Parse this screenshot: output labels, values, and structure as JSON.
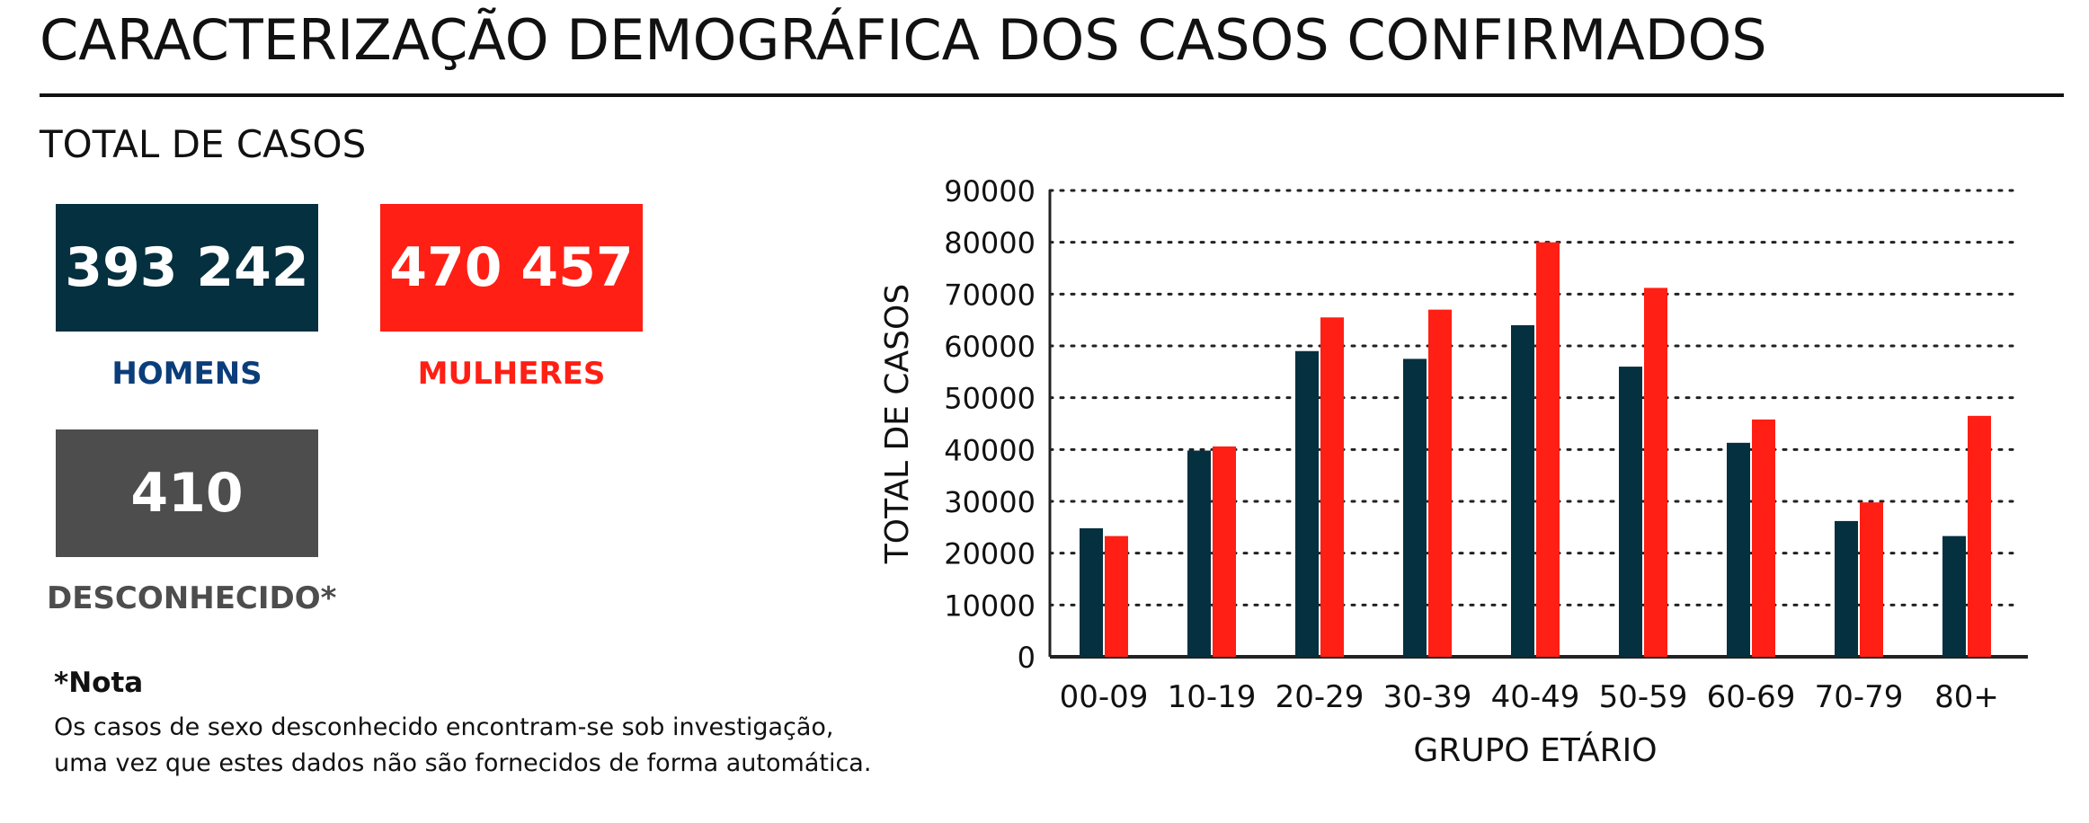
{
  "header": {
    "title": "CARACTERIZAÇÃO DEMOGRÁFICA DOS CASOS CONFIRMADOS"
  },
  "totals": {
    "heading": "TOTAL DE CASOS",
    "men": {
      "value": "393 242",
      "label": "HOMENS",
      "color": "#04303f"
    },
    "women": {
      "value": "470 457",
      "label": "MULHERES",
      "color": "#ff1f14"
    },
    "unknown": {
      "value": "410",
      "label": "DESCONHECIDO*",
      "color": "#4d4d4d"
    },
    "men_label_color": "#0b3d7a"
  },
  "note": {
    "title": "*Nota",
    "lines": [
      "Os casos de sexo desconhecido encontram-se sob investigação,",
      "uma vez que estes dados não são fornecidos de forma automática."
    ]
  },
  "chart_data": {
    "type": "bar",
    "title": "",
    "xlabel": "GRUPO ETÁRIO",
    "ylabel": "TOTAL DE CASOS",
    "categories": [
      "00-09",
      "10-19",
      "20-29",
      "30-39",
      "40-49",
      "50-59",
      "60-69",
      "70-79",
      "80+"
    ],
    "series": [
      {
        "color": "#04303f",
        "values": [
          24800,
          39800,
          59000,
          57500,
          64000,
          56000,
          41300,
          26200,
          23300
        ]
      },
      {
        "color": "#ff1f14",
        "values": [
          23300,
          40600,
          65500,
          67000,
          80000,
          71200,
          45800,
          29800,
          46500
        ]
      }
    ],
    "ylim": [
      0,
      90000
    ],
    "yticks": [
      0,
      10000,
      20000,
      30000,
      40000,
      50000,
      60000,
      70000,
      80000,
      90000
    ],
    "ytick_labels": [
      "0",
      "10000",
      "20000",
      "30000",
      "40000",
      "50000",
      "60000",
      "70000",
      "80000",
      "90000"
    ],
    "grid": true,
    "legend": "none"
  }
}
